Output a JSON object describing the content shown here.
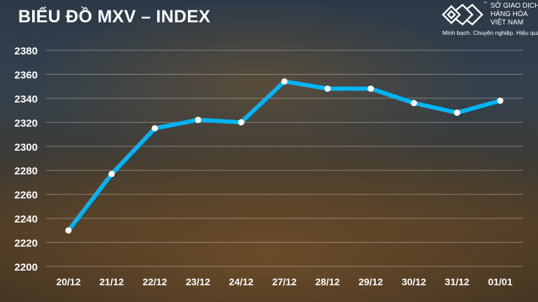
{
  "header": {
    "title": "BIỂU ĐỒ MXV – INDEX"
  },
  "logo": {
    "line1": "SỞ GIAO DỊCH",
    "line2": "HÀNG HÓA",
    "line3": "VIỆT NAM",
    "tm": "™",
    "slogan": "Minh bạch. Chuyên nghiệp. Hiệu quả"
  },
  "chart_data": {
    "type": "line",
    "title": "BIỂU ĐỒ MXV – INDEX",
    "categories": [
      "20/12",
      "21/12",
      "22/12",
      "23/12",
      "24/12",
      "27/12",
      "28/12",
      "29/12",
      "30/12",
      "31/12",
      "01/01"
    ],
    "values": [
      2230,
      2277,
      2315,
      2322,
      2320,
      2354,
      2348,
      2348,
      2336,
      2328,
      2338
    ],
    "ylim": [
      2200,
      2380
    ],
    "yticks": [
      2200,
      2220,
      2240,
      2260,
      2280,
      2300,
      2320,
      2340,
      2360,
      2380
    ],
    "grid": true,
    "line_color": "#00b4f5",
    "marker_color": "#ffffff"
  }
}
